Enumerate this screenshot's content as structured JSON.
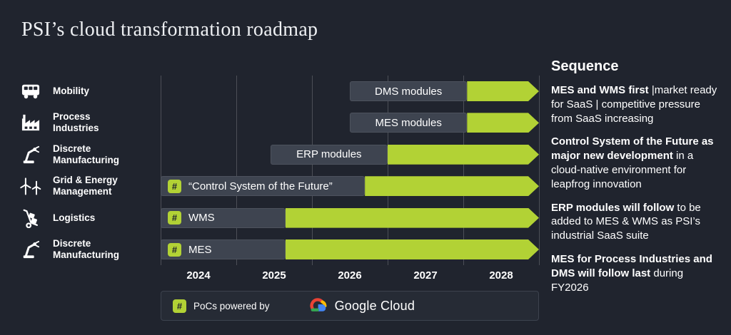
{
  "title": "PSI’s cloud transformation roadmap",
  "colors": {
    "accent_green": "#b2d235",
    "background": "#20242e",
    "bar_gray": "#3e4450",
    "google_blue": "#4285F4",
    "google_red": "#EA4335",
    "google_yellow": "#FBBC05",
    "google_green": "#34A853"
  },
  "chart_data": {
    "type": "gantt",
    "title": "PSI’s cloud transformation roadmap",
    "x_ticks": [
      "2024",
      "2025",
      "2026",
      "2027",
      "2028"
    ],
    "x_range": [
      2024,
      2029
    ],
    "grid": true,
    "rows": [
      {
        "sector": "Mobility",
        "icon": "bus-icon",
        "label": "DMS modules",
        "poc": false,
        "bar": [
          2026.5,
          2028.05
        ],
        "arrow": [
          2028.05,
          2029
        ]
      },
      {
        "sector": "Process Industries",
        "icon": "factory-icon",
        "label": "MES modules",
        "poc": false,
        "bar": [
          2026.5,
          2028.05
        ],
        "arrow": [
          2028.05,
          2029
        ]
      },
      {
        "sector": "Discrete Manufacturing",
        "icon": "robot-arm-icon",
        "label": "ERP modules",
        "poc": false,
        "bar": [
          2025.45,
          2027.0
        ],
        "arrow": [
          2027.0,
          2029
        ]
      },
      {
        "sector": "Grid & Energy Management",
        "icon": "wind-turbine-icon",
        "label": "“Control System of the Future”",
        "poc": true,
        "bar": [
          2024.0,
          2026.7
        ],
        "arrow": [
          2026.7,
          2029
        ]
      },
      {
        "sector": "Logistics",
        "icon": "hand-truck-icon",
        "label": "WMS",
        "poc": true,
        "bar": [
          2024.0,
          2025.65
        ],
        "arrow": [
          2025.65,
          2029
        ]
      },
      {
        "sector": "Discrete Manufacturing",
        "icon": "robot-arm-icon",
        "label": "MES",
        "poc": true,
        "bar": [
          2024.0,
          2025.65
        ],
        "arrow": [
          2025.65,
          2029
        ]
      }
    ]
  },
  "legend": {
    "hash": "#",
    "text": "PoCs powered by",
    "brand": "Google Cloud"
  },
  "sequence": {
    "heading": "Sequence",
    "items": [
      {
        "bold": "MES and WMS first",
        "rest": " |market ready for SaaS | competitive pressure from SaaS increasing"
      },
      {
        "bold": "Control System of the Future as major new development",
        "rest": " in a cloud-native environment for leapfrog innovation"
      },
      {
        "bold": "ERP modules will follow",
        "rest": " to be added to MES & WMS as PSI’s industrial SaaS suite"
      },
      {
        "bold": "MES for Process Industries and DMS will follow last",
        "rest": " during FY2026"
      }
    ]
  }
}
